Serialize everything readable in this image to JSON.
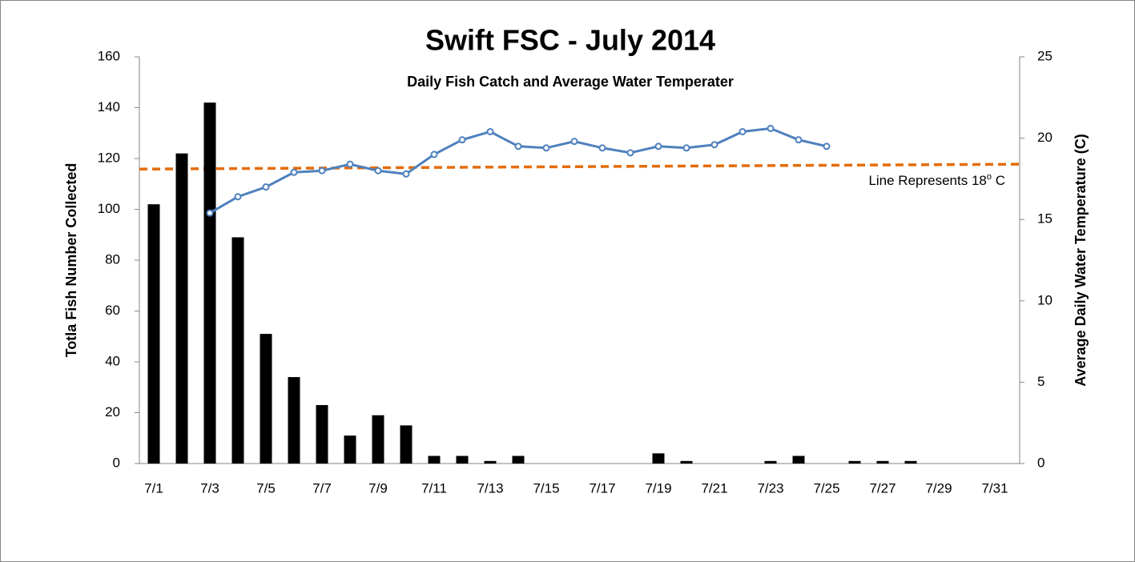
{
  "chart_data": {
    "type": "bar",
    "title": "Swift FSC - July 2014",
    "subtitle": "Daily Fish Catch and Average Water Temperater",
    "y_label": "Totla Fish Number Collected",
    "y2_label": "Average Daily Water Temperature (C)",
    "categories": [
      "7/1",
      null,
      "7/3",
      null,
      "7/5",
      null,
      "7/7",
      null,
      "7/9",
      null,
      "7/11",
      null,
      "7/13",
      null,
      "7/15",
      null,
      "7/17",
      null,
      "7/19",
      null,
      "7/21",
      null,
      "7/23",
      null,
      "7/25",
      null,
      "7/27",
      null,
      "7/29",
      null,
      "7/31"
    ],
    "series": [
      {
        "type": "bar",
        "color": "#000000",
        "values": [
          102,
          122,
          142,
          89,
          51,
          34,
          23,
          11,
          19,
          15,
          3,
          3,
          1,
          3,
          0,
          0,
          0,
          0,
          4,
          1,
          0,
          0,
          1,
          3,
          0,
          1,
          1,
          1,
          0,
          0,
          0
        ]
      },
      {
        "type": "line",
        "axis": "y2",
        "color": "#4f81bd",
        "values": [
          null,
          null,
          15.4,
          16.4,
          17.0,
          17.9,
          18.0,
          18.4,
          18.0,
          17.8,
          19.0,
          19.9,
          20.4,
          19.5,
          19.4,
          19.8,
          19.4,
          19.1,
          19.5,
          19.4,
          19.6,
          20.4,
          20.6,
          19.9,
          19.5,
          null,
          null,
          null,
          null,
          null,
          null
        ]
      }
    ],
    "reference_line": {
      "axis": "y2",
      "color": "#e46c0a",
      "dashed": true,
      "values": [
        18.1,
        18.4
      ]
    },
    "annotation": [
      "Line Represents 18",
      "o",
      " C"
    ],
    "ylim": [
      0,
      160
    ],
    "yticks": [
      0,
      20,
      40,
      60,
      80,
      100,
      120,
      140,
      160
    ],
    "y2lim": [
      0,
      25
    ],
    "y2ticks": [
      0,
      5,
      10,
      15,
      20,
      25
    ],
    "grid": false
  }
}
